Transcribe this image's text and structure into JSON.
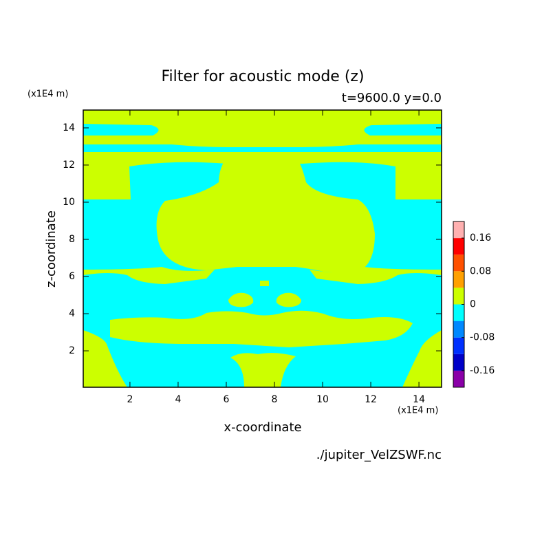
{
  "chart_data": {
    "type": "contour",
    "title": "Filter for acoustic mode (z)",
    "subtitle": "t=9600.0 y=0.0",
    "x_label": "x-coordinate",
    "y_label": "z-coordinate",
    "x_unit": "(x1E4 m)",
    "y_unit": "(x1E4 m)",
    "source": "./jupiter_VelZSWF.nc",
    "xlim": [
      0.06,
      14.94
    ],
    "xticks": [
      2,
      4,
      6,
      8,
      10,
      12,
      14
    ],
    "ylim": [
      0.04,
      14.96
    ],
    "yticks": [
      2,
      4,
      6,
      8,
      10,
      12,
      14
    ],
    "colorbar": {
      "levels": [
        -0.2,
        -0.16,
        -0.12,
        -0.08,
        -0.04,
        0,
        0.04,
        0.08,
        0.12,
        0.16,
        0.2
      ],
      "colors": [
        "#8a00a8",
        "#0000c8",
        "#0030ff",
        "#0088ff",
        "#00ffff",
        "#ccff00",
        "#ffa000",
        "#ff5000",
        "#ff0000",
        "#ffb0b0"
      ],
      "ticks": [
        -0.16,
        -0.08,
        0,
        0.08,
        0.16
      ]
    }
  }
}
